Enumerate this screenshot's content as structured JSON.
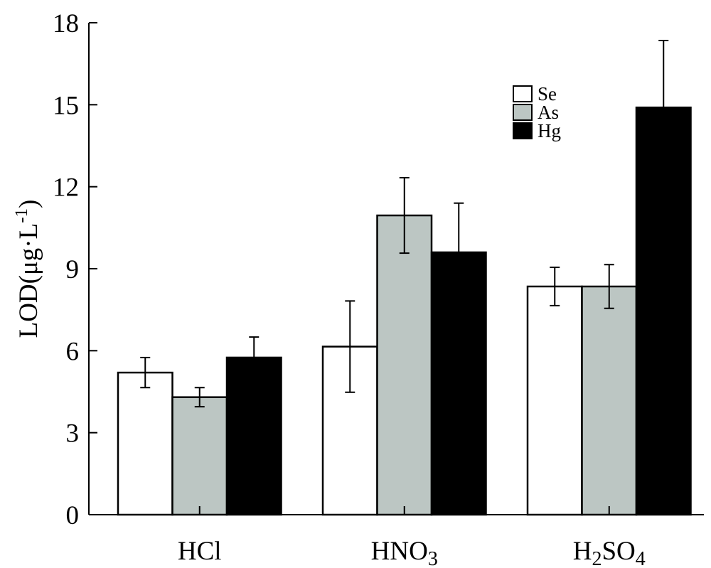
{
  "chart_data": {
    "type": "bar",
    "categories": [
      "HCl",
      "HNO3",
      "H2SO4"
    ],
    "category_display": [
      {
        "base": "HCl",
        "parts": []
      },
      {
        "base": "HNO",
        "parts": [
          {
            "text": "3",
            "sub": true
          }
        ]
      },
      {
        "base": "H",
        "parts": [
          {
            "text": "2",
            "sub": true
          },
          {
            "text": "SO",
            "sub": false
          },
          {
            "text": "4",
            "sub": true
          }
        ]
      }
    ],
    "series": [
      {
        "name": "Se",
        "color": "#ffffff",
        "values": [
          5.2,
          6.15,
          8.35
        ],
        "errors": [
          0.55,
          1.67,
          0.7
        ]
      },
      {
        "name": "As",
        "color": "#bcc6c3",
        "values": [
          4.3,
          10.95,
          8.35
        ],
        "errors": [
          0.35,
          1.38,
          0.8
        ]
      },
      {
        "name": "Hg",
        "color": "#000000",
        "values": [
          5.75,
          9.6,
          14.9
        ],
        "errors": [
          0.75,
          1.8,
          2.45
        ]
      }
    ],
    "ylabel": {
      "main": "LOD(μg·L",
      "sup": "-1",
      "close": ")"
    },
    "ylim": [
      0,
      18
    ],
    "yticks": [
      0,
      3,
      6,
      9,
      12,
      15,
      18
    ],
    "legend_position": "top-right",
    "grid": false
  }
}
